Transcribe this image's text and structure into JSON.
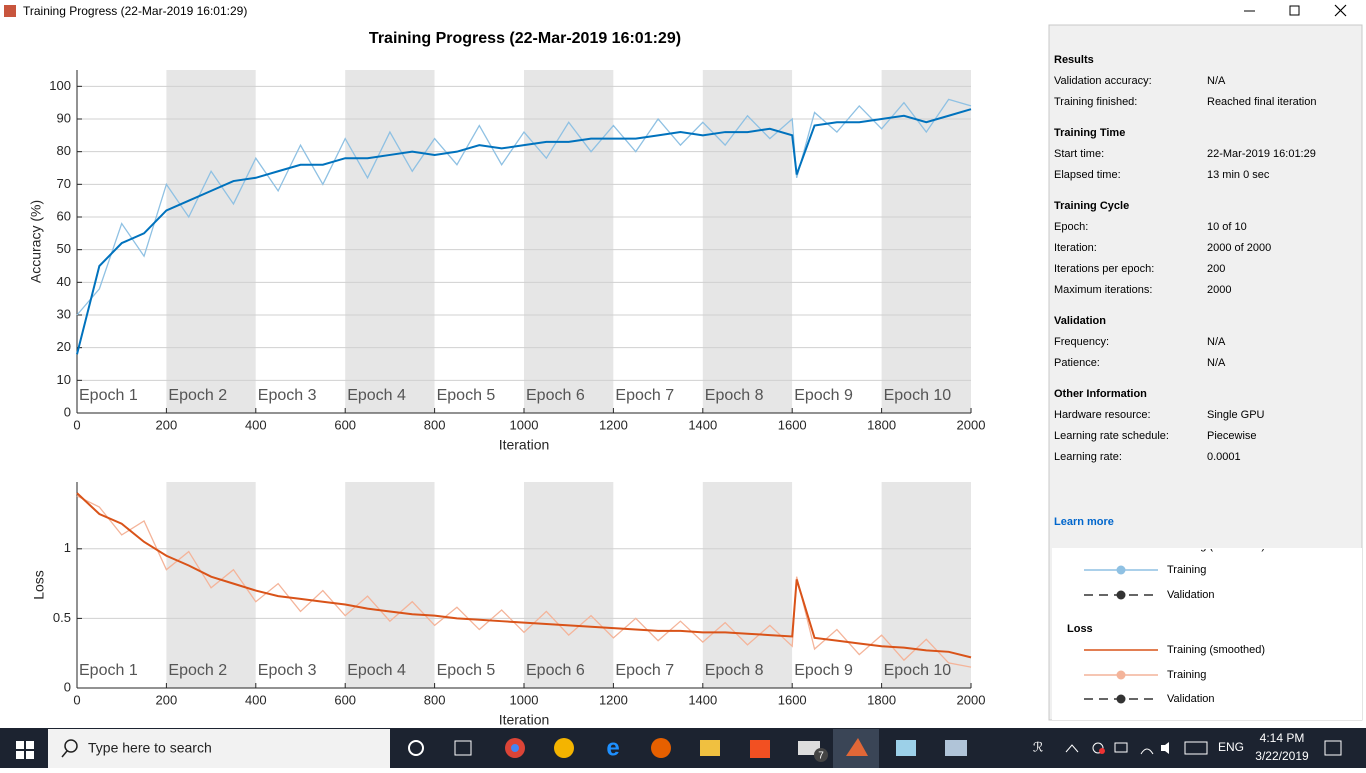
{
  "window": {
    "title": "Training Progress (22-Mar-2019 16:01:29)"
  },
  "chart_data": [
    {
      "type": "line",
      "title": "Training Progress (22-Mar-2019 16:01:29)",
      "xlabel": "Iteration",
      "ylabel": "Accuracy (%)",
      "xlim": [
        0,
        2000
      ],
      "xticks": [
        0,
        200,
        400,
        600,
        800,
        1000,
        1200,
        1400,
        1600,
        1800,
        2000
      ],
      "ylim": [
        0,
        105
      ],
      "yticks": [
        0,
        10,
        20,
        30,
        40,
        50,
        60,
        70,
        80,
        90,
        100
      ],
      "grid": true,
      "epochs": [
        "Epoch 1",
        "Epoch 2",
        "Epoch 3",
        "Epoch 4",
        "Epoch 5",
        "Epoch 6",
        "Epoch 7",
        "Epoch 8",
        "Epoch 9",
        "Epoch 10"
      ],
      "x": [
        0,
        50,
        100,
        150,
        200,
        250,
        300,
        350,
        400,
        450,
        500,
        550,
        600,
        650,
        700,
        750,
        800,
        850,
        900,
        950,
        1000,
        1050,
        1100,
        1150,
        1200,
        1250,
        1300,
        1350,
        1400,
        1450,
        1500,
        1550,
        1600,
        1610,
        1650,
        1700,
        1750,
        1800,
        1850,
        1900,
        1950,
        2000
      ],
      "series": [
        {
          "name": "Training",
          "color": "#8fc1e3",
          "values": [
            30,
            38,
            58,
            48,
            70,
            60,
            74,
            64,
            78,
            68,
            82,
            70,
            84,
            72,
            86,
            74,
            84,
            76,
            88,
            76,
            86,
            78,
            89,
            80,
            88,
            80,
            90,
            82,
            89,
            82,
            91,
            84,
            90,
            72,
            92,
            86,
            94,
            87,
            95,
            86,
            96,
            94
          ]
        },
        {
          "name": "Training (smoothed)",
          "color": "#0072bd",
          "values": [
            18,
            45,
            52,
            55,
            62,
            65,
            68,
            71,
            72,
            74,
            76,
            76,
            78,
            78,
            79,
            80,
            79,
            80,
            82,
            81,
            82,
            83,
            83,
            84,
            84,
            84,
            85,
            86,
            85,
            86,
            86,
            87,
            85,
            73,
            88,
            89,
            89,
            90,
            91,
            89,
            91,
            93
          ]
        }
      ]
    },
    {
      "type": "line",
      "xlabel": "Iteration",
      "ylabel": "Loss",
      "xlim": [
        0,
        2000
      ],
      "xticks": [
        0,
        200,
        400,
        600,
        800,
        1000,
        1200,
        1400,
        1600,
        1800,
        2000
      ],
      "ylim": [
        0,
        1.48
      ],
      "yticks": [
        0,
        0.5,
        1
      ],
      "grid": true,
      "epochs": [
        "Epoch 1",
        "Epoch 2",
        "Epoch 3",
        "Epoch 4",
        "Epoch 5",
        "Epoch 6",
        "Epoch 7",
        "Epoch 8",
        "Epoch 9",
        "Epoch 10"
      ],
      "x": [
        0,
        50,
        100,
        150,
        200,
        250,
        300,
        350,
        400,
        450,
        500,
        550,
        600,
        650,
        700,
        750,
        800,
        850,
        900,
        950,
        1000,
        1050,
        1100,
        1150,
        1200,
        1250,
        1300,
        1350,
        1400,
        1450,
        1500,
        1550,
        1600,
        1610,
        1650,
        1700,
        1750,
        1800,
        1850,
        1900,
        1950,
        2000
      ],
      "series": [
        {
          "name": "Training",
          "color": "#f4b49a",
          "values": [
            1.38,
            1.3,
            1.1,
            1.2,
            0.85,
            0.98,
            0.72,
            0.85,
            0.62,
            0.75,
            0.55,
            0.7,
            0.52,
            0.66,
            0.48,
            0.62,
            0.45,
            0.58,
            0.42,
            0.56,
            0.4,
            0.55,
            0.38,
            0.52,
            0.36,
            0.5,
            0.34,
            0.48,
            0.33,
            0.47,
            0.31,
            0.45,
            0.3,
            0.8,
            0.28,
            0.42,
            0.24,
            0.38,
            0.2,
            0.35,
            0.18,
            0.15
          ]
        },
        {
          "name": "Training (smoothed)",
          "color": "#d95319",
          "values": [
            1.4,
            1.25,
            1.18,
            1.05,
            0.95,
            0.88,
            0.8,
            0.75,
            0.7,
            0.66,
            0.64,
            0.62,
            0.6,
            0.57,
            0.55,
            0.53,
            0.52,
            0.5,
            0.49,
            0.48,
            0.47,
            0.46,
            0.45,
            0.44,
            0.43,
            0.42,
            0.41,
            0.41,
            0.4,
            0.4,
            0.39,
            0.38,
            0.37,
            0.78,
            0.36,
            0.34,
            0.32,
            0.3,
            0.29,
            0.27,
            0.26,
            0.22
          ]
        }
      ]
    }
  ],
  "panel": {
    "sections": [
      {
        "title": "Results",
        "rows": [
          {
            "label": "Validation accuracy:",
            "value": "N/A"
          },
          {
            "label": "Training finished:",
            "value": "Reached final iteration"
          }
        ]
      },
      {
        "title": "Training Time",
        "rows": [
          {
            "label": "Start time:",
            "value": "22-Mar-2019 16:01:29"
          },
          {
            "label": "Elapsed time:",
            "value": "13 min 0 sec"
          }
        ]
      },
      {
        "title": "Training Cycle",
        "rows": [
          {
            "label": "Epoch:",
            "value": "10 of 10"
          },
          {
            "label": "Iteration:",
            "value": "2000 of 2000"
          },
          {
            "label": "Iterations per epoch:",
            "value": "200"
          },
          {
            "label": "Maximum iterations:",
            "value": "2000"
          }
        ]
      },
      {
        "title": "Validation",
        "rows": [
          {
            "label": "Frequency:",
            "value": "N/A"
          },
          {
            "label": "Patience:",
            "value": "N/A"
          }
        ]
      },
      {
        "title": "Other Information",
        "rows": [
          {
            "label": "Hardware resource:",
            "value": "Single GPU"
          },
          {
            "label": "Learning rate schedule:",
            "value": "Piecewise"
          },
          {
            "label": "Learning rate:",
            "value": "0.0001"
          }
        ]
      }
    ],
    "link": "Learn more",
    "legend": {
      "accuracy_items": [
        "Training (smoothed)",
        "Training",
        "Validation"
      ],
      "loss_title": "Loss",
      "loss_items": [
        "Training (smoothed)",
        "Training",
        "Validation"
      ]
    }
  },
  "taskbar": {
    "search": "Type here to search",
    "mail_badge": "7",
    "language": "ENG",
    "time": "4:14 PM",
    "date": "3/22/2019"
  }
}
